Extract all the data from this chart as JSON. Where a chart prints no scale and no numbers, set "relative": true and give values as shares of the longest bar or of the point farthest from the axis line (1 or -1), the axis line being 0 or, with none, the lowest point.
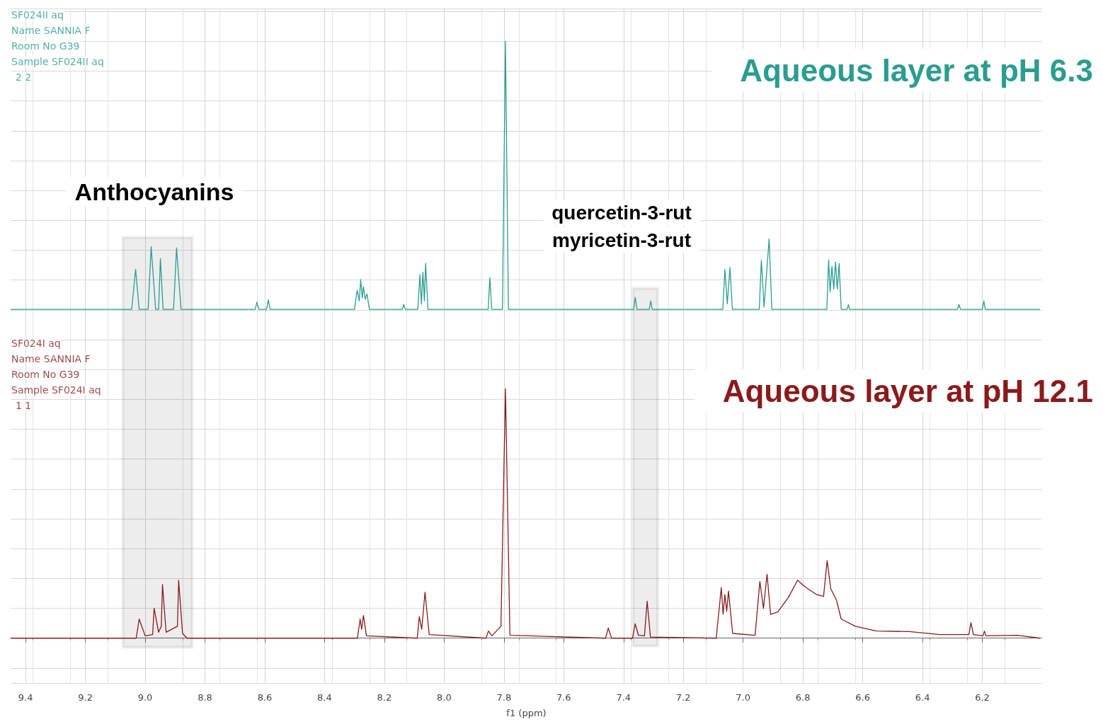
{
  "chart_data": {
    "type": "line",
    "relative": true,
    "xlabel": "f1 (ppm)",
    "xlim": [
      9.45,
      6.0
    ],
    "xticks": [
      9.4,
      9.2,
      {
        "value": 9.0,
        "label": "9.0"
      },
      8.8,
      8.6,
      8.4,
      8.2,
      {
        "value": 8.0,
        "label": "8.0"
      },
      7.8,
      7.6,
      7.4,
      7.2,
      {
        "value": 7.0,
        "label": "7.0"
      },
      6.8,
      6.6,
      6.4,
      6.2
    ],
    "tick_labels": "x",
    "grid": true,
    "legend": false,
    "marker": "none",
    "line_style": "solid",
    "series": [
      {
        "name": "Aqueous layer at pH 6.3",
        "color": "#2a9d8f",
        "x": [
          9.45,
          9.045,
          9.032,
          9.02,
          8.99,
          8.98,
          8.965,
          8.955,
          8.949,
          8.94,
          8.905,
          8.895,
          8.88,
          8.632,
          8.626,
          8.62,
          8.594,
          8.588,
          8.582,
          8.3,
          8.291,
          8.284,
          8.279,
          8.274,
          8.27,
          8.264,
          8.258,
          8.25,
          8.14,
          8.135,
          8.13,
          8.088,
          8.081,
          8.076,
          8.071,
          8.066,
          8.062,
          8.054,
          7.853,
          7.847,
          7.841,
          7.805,
          7.795,
          7.785,
          7.366,
          7.361,
          7.355,
          7.314,
          7.309,
          7.304,
          7.068,
          7.061,
          7.053,
          7.044,
          7.036,
          6.946,
          6.939,
          6.93,
          6.913,
          6.904,
          6.72,
          6.714,
          6.709,
          6.703,
          6.697,
          6.691,
          6.685,
          6.679,
          6.672,
          6.652,
          6.648,
          6.644,
          6.283,
          6.278,
          6.273,
          6.2,
          6.195,
          6.19,
          6.007
        ],
        "values": [
          0.551,
          0.551,
          0.618,
          0.551,
          0.551,
          0.656,
          0.551,
          0.551,
          0.636,
          0.551,
          0.551,
          0.654,
          0.551,
          0.551,
          0.563,
          0.551,
          0.551,
          0.567,
          0.551,
          0.551,
          0.583,
          0.565,
          0.601,
          0.57,
          0.589,
          0.568,
          0.577,
          0.551,
          0.551,
          0.559,
          0.551,
          0.551,
          0.609,
          0.56,
          0.613,
          0.565,
          0.628,
          0.551,
          0.551,
          0.604,
          0.551,
          0.551,
          1.0,
          0.551,
          0.551,
          0.571,
          0.551,
          0.551,
          0.565,
          0.551,
          0.551,
          0.618,
          0.56,
          0.621,
          0.551,
          0.551,
          0.633,
          0.555,
          0.669,
          0.551,
          0.551,
          0.634,
          0.58,
          0.623,
          0.585,
          0.63,
          0.585,
          0.628,
          0.551,
          0.551,
          0.559,
          0.551,
          0.551,
          0.559,
          0.551,
          0.551,
          0.565,
          0.551,
          0.551
        ]
      },
      {
        "name": "Aqueous layer at pH 12.1",
        "color": "#8b1a1a",
        "x": [
          9.45,
          9.03,
          9.02,
          9.0,
          8.975,
          8.97,
          8.955,
          8.946,
          8.942,
          8.93,
          8.892,
          8.888,
          8.875,
          8.86,
          8.29,
          8.281,
          8.276,
          8.27,
          8.26,
          8.09,
          8.083,
          8.075,
          8.064,
          8.05,
          7.86,
          7.852,
          7.84,
          7.81,
          7.795,
          7.78,
          7.46,
          7.451,
          7.44,
          7.37,
          7.361,
          7.35,
          7.33,
          7.321,
          7.31,
          7.09,
          7.073,
          7.067,
          7.061,
          7.055,
          7.049,
          7.035,
          6.96,
          6.944,
          6.932,
          6.92,
          6.908,
          6.884,
          6.849,
          6.818,
          6.79,
          6.754,
          6.731,
          6.719,
          6.707,
          6.688,
          6.672,
          6.625,
          6.554,
          6.445,
          6.342,
          6.245,
          6.238,
          6.23,
          6.198,
          6.193,
          6.188,
          6.082,
          6.007
        ],
        "values": [
          0,
          0,
          0.032,
          0.004,
          0.006,
          0.05,
          0.01,
          0.02,
          0.09,
          0.01,
          0.02,
          0.097,
          0.008,
          0,
          0,
          0.032,
          0.015,
          0.038,
          0.004,
          0,
          0.036,
          0.015,
          0.077,
          0.006,
          0,
          0.012,
          0.004,
          0.02,
          0.418,
          0.005,
          0,
          0.017,
          0,
          0,
          0.024,
          0.005,
          0.004,
          0.062,
          0.002,
          0,
          0.085,
          0.04,
          0.073,
          0.045,
          0.079,
          0.008,
          0.005,
          0.095,
          0.05,
          0.107,
          0.04,
          0.044,
          0.068,
          0.097,
          0.085,
          0.073,
          0.07,
          0.13,
          0.083,
          0.064,
          0.032,
          0.02,
          0.012,
          0.011,
          0.006,
          0.006,
          0.026,
          0.006,
          0.004,
          0.012,
          0.004,
          0.005,
          0
        ]
      }
    ],
    "bands": [
      {
        "axis": "x",
        "from": 9.074,
        "to": 8.843,
        "color": "#000000"
      },
      {
        "axis": "x",
        "from": 7.368,
        "to": 7.286,
        "color": "#000000"
      }
    ],
    "annotations": [
      "SF024II aq",
      "Name SANNIA F",
      "Room No G39",
      "Sample SF024II aq",
      "2 2",
      "SF024I aq",
      "Name SANNIA F",
      "Room No G39",
      "Sample SF024I aq",
      "1 1",
      "Anthocyanins",
      "quercetin-3-rut",
      "myricetin-3-rut"
    ]
  }
}
